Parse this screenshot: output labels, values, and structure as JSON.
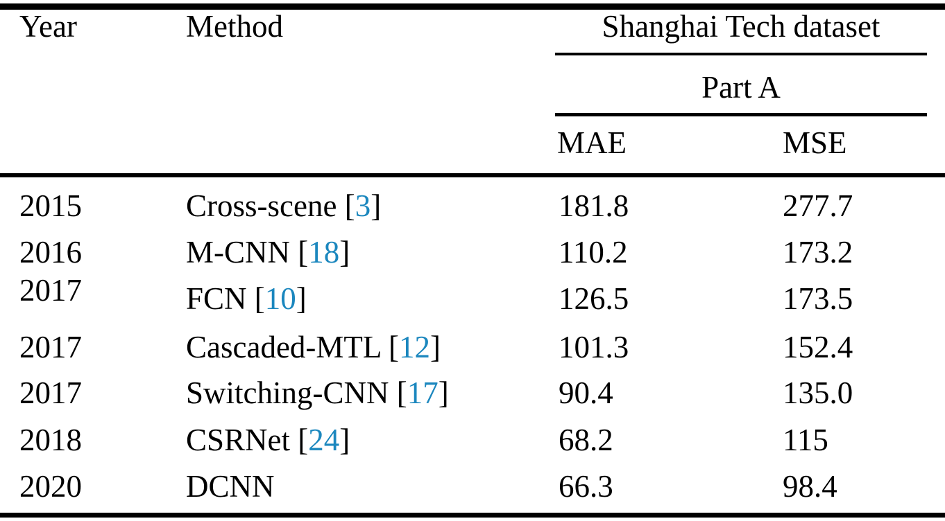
{
  "page": {
    "background": "#ffffff",
    "text_color": "#000000",
    "citation_color": "#1b87be"
  },
  "table": {
    "headers": {
      "year": "Year",
      "method": "Method",
      "dataset_group": "Shanghai Tech dataset",
      "part": "Part A",
      "mae": "MAE",
      "mse": "MSE"
    },
    "rows": [
      {
        "year": "2015",
        "method": "Cross-scene",
        "cite": "3",
        "mae": "181.8",
        "mse": "277.7"
      },
      {
        "year": "2016",
        "method": "M-CNN",
        "cite": "18",
        "mae": "110.2",
        "mse": "173.2"
      },
      {
        "year": "2017",
        "method": "FCN",
        "cite": "10",
        "mae": "126.5",
        "mse": "173.5"
      },
      {
        "year": "2017",
        "method": "Cascaded-MTL",
        "cite": "12",
        "mae": "101.3",
        "mse": "152.4"
      },
      {
        "year": "2017",
        "method": "Switching-CNN",
        "cite": "17",
        "mae": "90.4",
        "mse": "135.0"
      },
      {
        "year": "2018",
        "method": "CSRNet",
        "cite": "24",
        "mae": "68.2",
        "mse": "115"
      },
      {
        "year": "2020",
        "method": "DCNN",
        "cite": "",
        "mae": "66.3",
        "mse": "98.4"
      }
    ]
  }
}
